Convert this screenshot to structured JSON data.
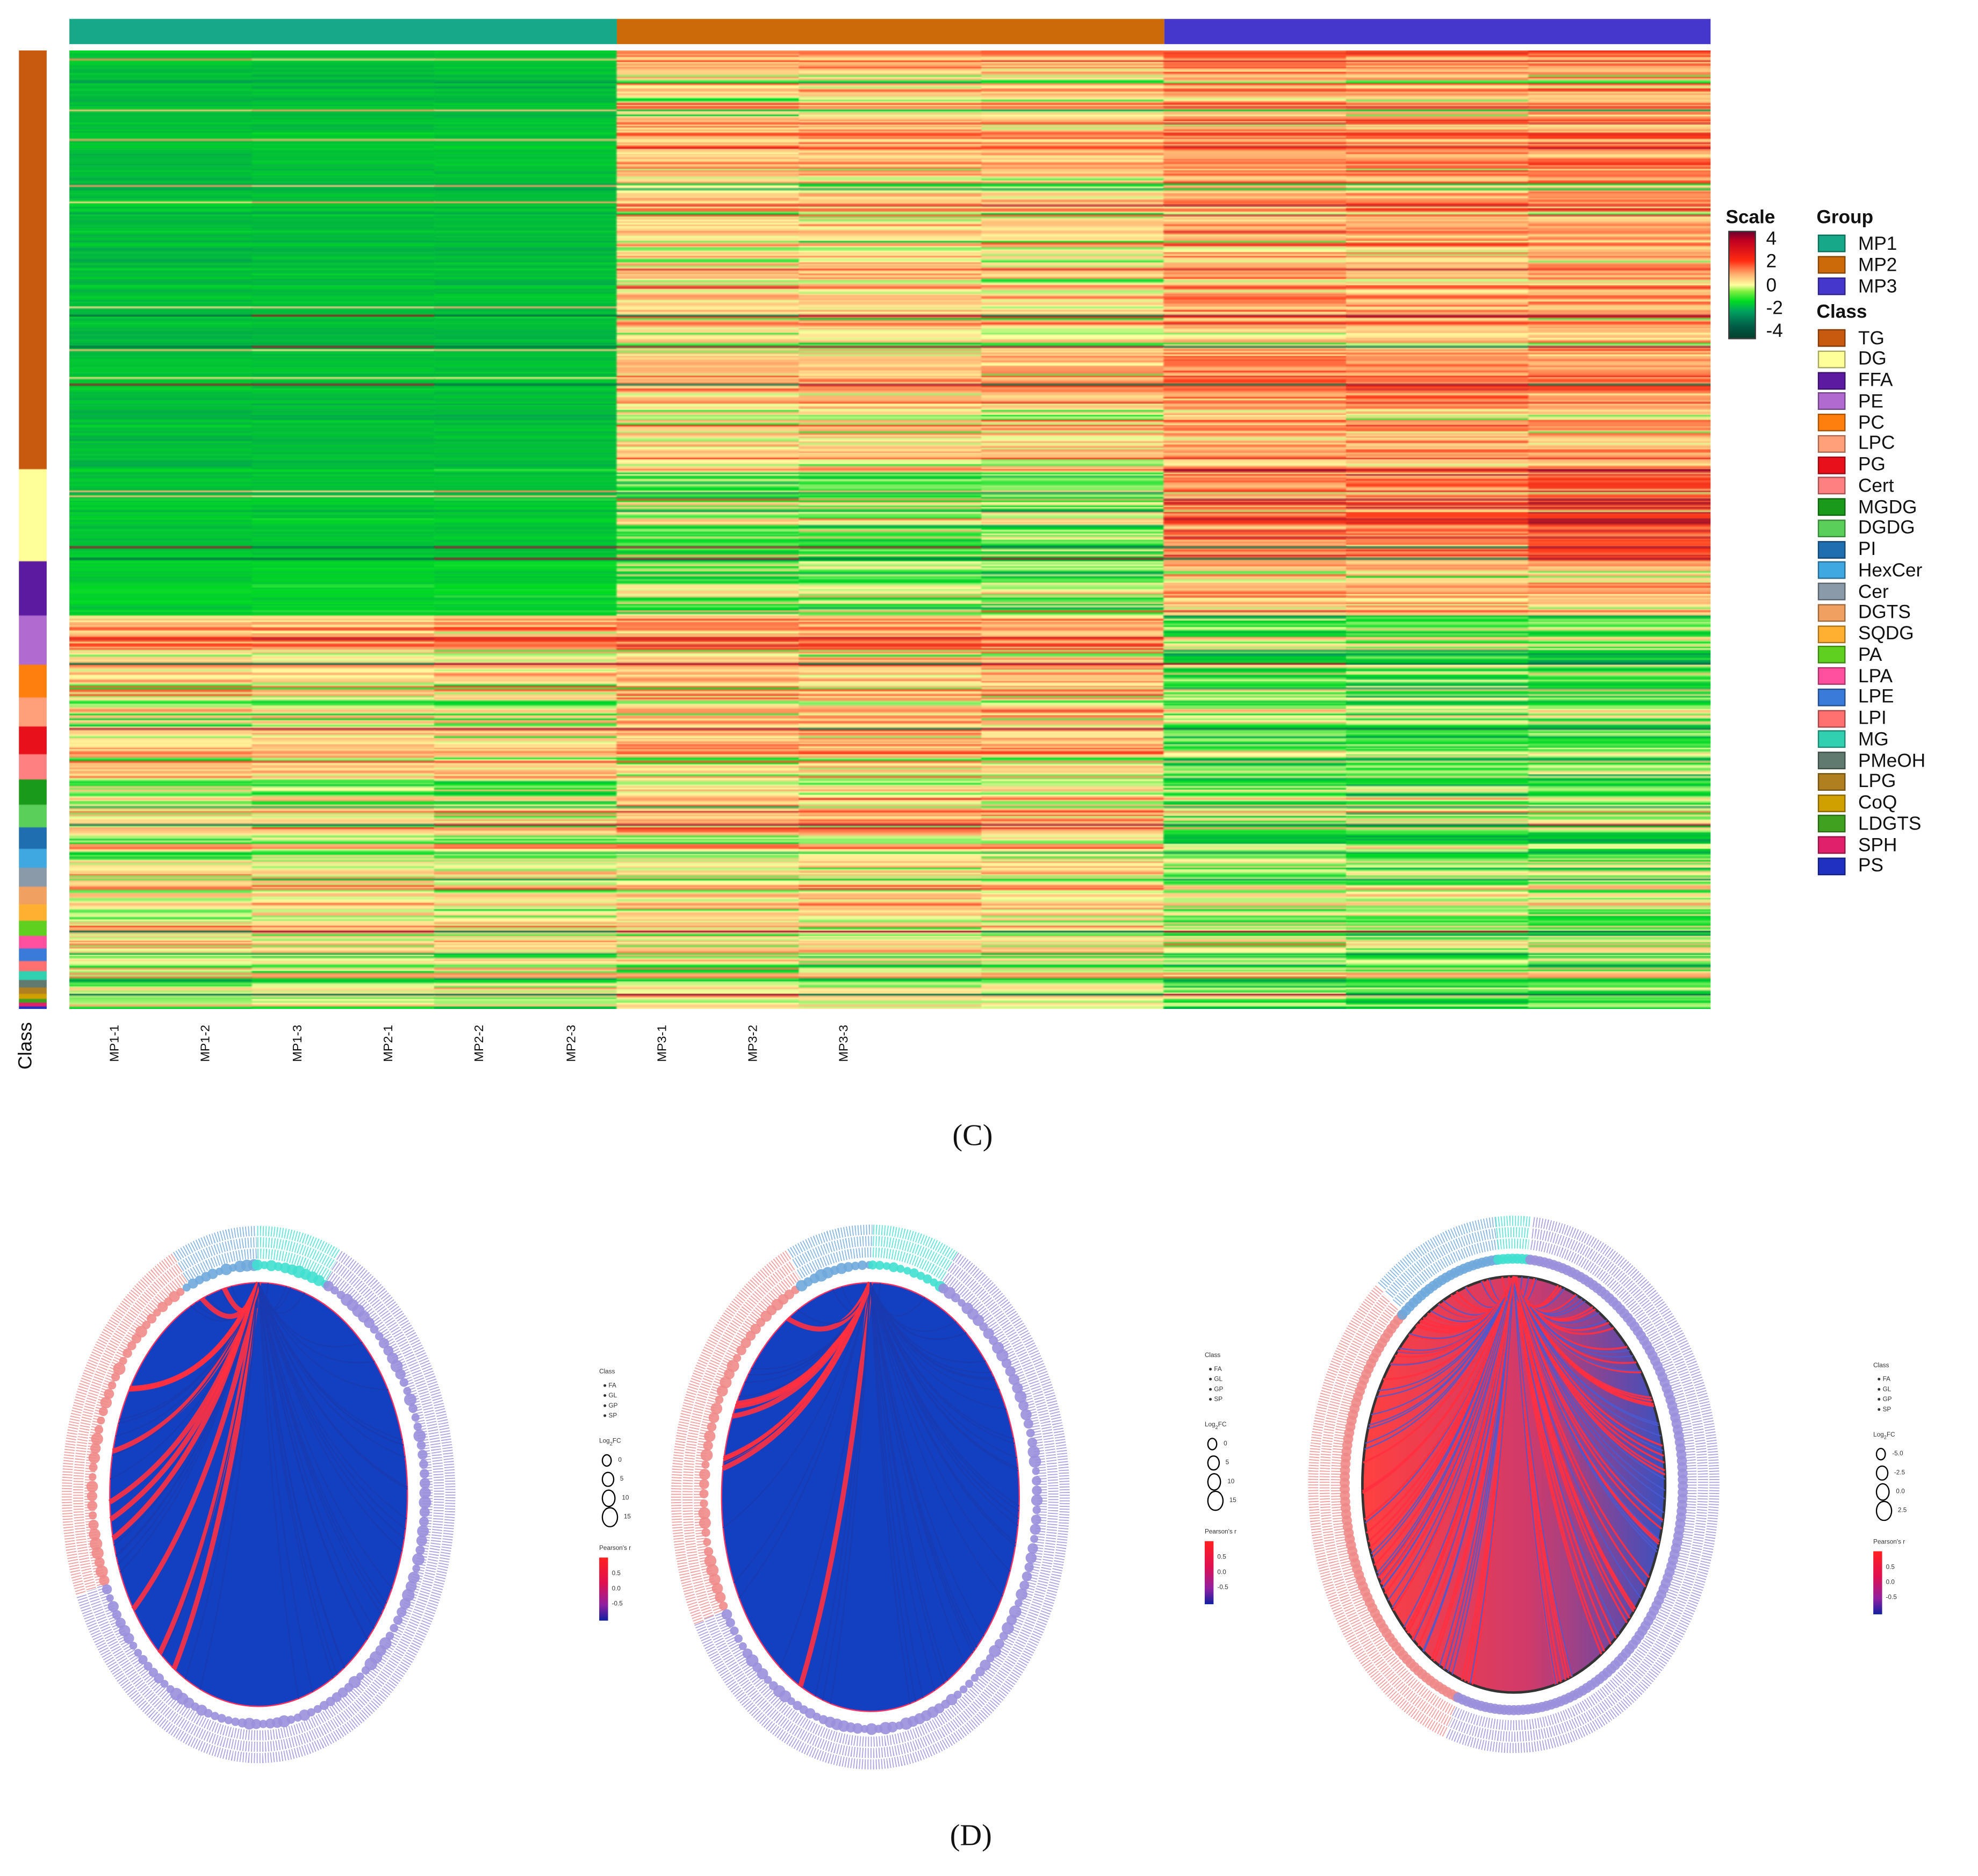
{
  "panel_c": {
    "label": "(C)"
  },
  "panel_d": {
    "label": "(D)"
  },
  "chart_data": [
    {
      "type": "heatmap",
      "title": "",
      "columns": [
        "MP1-1",
        "MP1-2",
        "MP1-3",
        "MP2-1",
        "MP2-2",
        "MP2-3",
        "MP3-1",
        "MP3-2",
        "MP3-3"
      ],
      "row_axis_label": "Class",
      "scale": {
        "title": "Scale",
        "range": [
          -4,
          4
        ],
        "ticks": [
          "4",
          "2",
          "0",
          "-2",
          "-4"
        ],
        "stops": [
          [
            -4,
            "#00573f"
          ],
          [
            -2,
            "#00a050"
          ],
          [
            -1,
            "#00dd22"
          ],
          [
            0,
            "#ffffa0"
          ],
          [
            1,
            "#ffb070"
          ],
          [
            2,
            "#ff3a1a"
          ],
          [
            4,
            "#7a0030"
          ]
        ]
      },
      "group_legend": {
        "title": "Group",
        "items": [
          {
            "name": "MP1",
            "color": "#16a888"
          },
          {
            "name": "MP2",
            "color": "#cc6a0a"
          },
          {
            "name": "MP3",
            "color": "#4536cc"
          }
        ]
      },
      "class_legend": {
        "title": "Class",
        "items": [
          {
            "name": "TG",
            "color": "#c85a10",
            "rows": 332,
            "mean": [
              -1.5,
              0.6,
              1.1
            ]
          },
          {
            "name": "DG",
            "color": "#ffff99",
            "rows": 73,
            "mean": [
              -1.4,
              -0.6,
              1.5
            ]
          },
          {
            "name": "FFA",
            "color": "#5b1aa0",
            "rows": 43,
            "mean": [
              -1.2,
              -0.3,
              0.8
            ]
          },
          {
            "name": "PE",
            "color": "#b06ad0",
            "rows": 39,
            "mean": [
              0.9,
              1.2,
              -0.7
            ]
          },
          {
            "name": "PC",
            "color": "#ff7f0e",
            "rows": 26,
            "mean": [
              0.3,
              0.6,
              -0.8
            ]
          },
          {
            "name": "LPC",
            "color": "#ffa07a",
            "rows": 23,
            "mean": [
              -0.3,
              0.4,
              -0.6
            ]
          },
          {
            "name": "PG",
            "color": "#e8101a",
            "rows": 22,
            "mean": [
              0.4,
              0.9,
              -0.7
            ]
          },
          {
            "name": "Cert",
            "color": "#ff8080",
            "rows": 20,
            "mean": [
              0.7,
              0.3,
              -0.6
            ]
          },
          {
            "name": "MGDG",
            "color": "#1a9a1a",
            "rows": 20,
            "mean": [
              -0.2,
              0.5,
              -0.5
            ]
          },
          {
            "name": "DGDG",
            "color": "#5ad05a",
            "rows": 18,
            "mean": [
              0.1,
              0.7,
              -0.4
            ]
          },
          {
            "name": "PI",
            "color": "#1f6fb0",
            "rows": 17,
            "mean": [
              0.4,
              0.8,
              -0.7
            ]
          },
          {
            "name": "HexCer",
            "color": "#40a8e0",
            "rows": 15,
            "mean": [
              -0.2,
              0.2,
              -0.5
            ]
          },
          {
            "name": "Cer",
            "color": "#8a9aa8",
            "rows": 15,
            "mean": [
              0.2,
              0.1,
              -0.6
            ]
          },
          {
            "name": "DGTS",
            "color": "#f0a060",
            "rows": 14,
            "mean": [
              0.5,
              0.6,
              0.3
            ]
          },
          {
            "name": "SQDG",
            "color": "#ffb030",
            "rows": 13,
            "mean": [
              -0.3,
              0.3,
              -0.6
            ]
          },
          {
            "name": "PA",
            "color": "#60d020",
            "rows": 12,
            "mean": [
              0.5,
              0.2,
              -0.5
            ]
          },
          {
            "name": "LPA",
            "color": "#ff50a0",
            "rows": 10,
            "mean": [
              0.6,
              0.4,
              0.2
            ]
          },
          {
            "name": "LPE",
            "color": "#3a7ad8",
            "rows": 10,
            "mean": [
              -0.2,
              0.3,
              -0.5
            ]
          },
          {
            "name": "LPI",
            "color": "#ff7070",
            "rows": 8,
            "mean": [
              0.3,
              0.1,
              -0.4
            ]
          },
          {
            "name": "MG",
            "color": "#30d0b0",
            "rows": 7,
            "mean": [
              0.2,
              0.3,
              0.4
            ]
          },
          {
            "name": "PMeOH",
            "color": "#607a70",
            "rows": 6,
            "mean": [
              -0.4,
              0.2,
              -0.6
            ]
          },
          {
            "name": "LPG",
            "color": "#b08020",
            "rows": 5,
            "mean": [
              0.4,
              0.2,
              -0.5
            ]
          },
          {
            "name": "CoQ",
            "color": "#d0a000",
            "rows": 4,
            "mean": [
              -0.3,
              0.4,
              -0.4
            ]
          },
          {
            "name": "LDGTS",
            "color": "#40a020",
            "rows": 3,
            "mean": [
              0.3,
              0.5,
              -0.5
            ]
          },
          {
            "name": "SPH",
            "color": "#e0206a",
            "rows": 3,
            "mean": [
              0.4,
              0.2,
              -0.5
            ]
          },
          {
            "name": "PS",
            "color": "#2030c0",
            "rows": 2,
            "mean": [
              -0.5,
              0.6,
              -0.6
            ]
          }
        ]
      }
    },
    {
      "type": "chord",
      "class_share": [
        {
          "name": "GP",
          "color": "#f08a8a",
          "share": 0.24
        },
        {
          "name": "SP",
          "color": "#6fa8dc",
          "share": 0.07
        },
        {
          "name": "FA",
          "color": "#40e0d0",
          "share": 0.07
        },
        {
          "name": "GL",
          "color": "#9a8fdc",
          "share": 0.62
        }
      ],
      "red_chord_fraction": 0.3,
      "legend": {
        "class_title": "Class",
        "classes": [
          "FA",
          "GL",
          "GP",
          "SP"
        ],
        "logfc_title": "Log",
        "logfc_sub": "2",
        "logfc_tail": "FC",
        "logfc_values": [
          "0",
          "5",
          "10",
          "15"
        ],
        "pearson_title": "Pearson's r",
        "pearson_ticks": [
          "0.5",
          "0.0",
          "-0.5"
        ]
      }
    },
    {
      "type": "chord",
      "class_share": [
        {
          "name": "GP",
          "color": "#f08a8a",
          "share": 0.26
        },
        {
          "name": "SP",
          "color": "#6fa8dc",
          "share": 0.07
        },
        {
          "name": "FA",
          "color": "#40e0d0",
          "share": 0.07
        },
        {
          "name": "GL",
          "color": "#9a8fdc",
          "share": 0.6
        }
      ],
      "red_chord_fraction": 0.35,
      "legend": {
        "class_title": "Class",
        "classes": [
          "FA",
          "GL",
          "GP",
          "SP"
        ],
        "logfc_title": "Log",
        "logfc_sub": "2",
        "logfc_tail": "FC",
        "logfc_values": [
          "0",
          "5",
          "10",
          "15"
        ],
        "pearson_title": "Pearson's r",
        "pearson_ticks": [
          "0.5",
          "0.0",
          "-0.5"
        ]
      }
    },
    {
      "type": "chord",
      "class_share": [
        {
          "name": "GP",
          "color": "#f08a8a",
          "share": 0.33
        },
        {
          "name": "SP",
          "color": "#6fa8dc",
          "share": 0.1
        },
        {
          "name": "FA",
          "color": "#40e0d0",
          "share": 0.03
        },
        {
          "name": "GL",
          "color": "#9a8fdc",
          "share": 0.54
        }
      ],
      "red_chord_fraction": 0.55,
      "legend": {
        "class_title": "Class",
        "classes": [
          "FA",
          "GL",
          "GP",
          "SP"
        ],
        "logfc_title": "Log",
        "logfc_sub": "2",
        "logfc_tail": "FC",
        "logfc_values": [
          "-5.0",
          "-2.5",
          "0.0",
          "2.5"
        ],
        "pearson_title": "Pearson's r",
        "pearson_ticks": [
          "0.5",
          "0.0",
          "-0.5"
        ]
      }
    }
  ]
}
